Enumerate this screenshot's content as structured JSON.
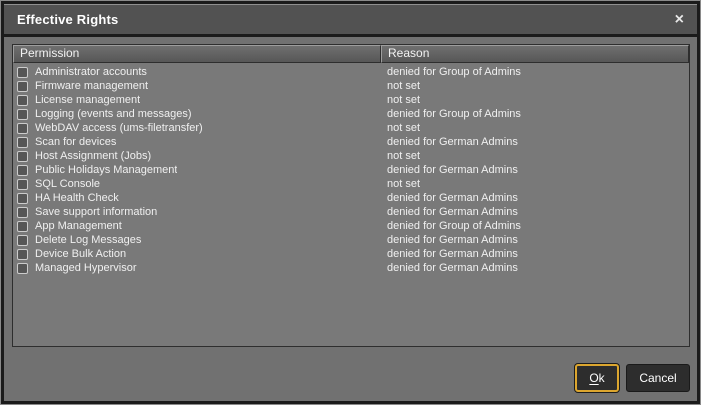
{
  "window": {
    "title": "Effective Rights",
    "close_icon": "×"
  },
  "table": {
    "columns": [
      "Permission",
      "Reason"
    ],
    "rows": [
      {
        "permission": "Administrator accounts",
        "reason": "denied for Group of Admins",
        "checked": false
      },
      {
        "permission": "Firmware management",
        "reason": "not set",
        "checked": false
      },
      {
        "permission": "License management",
        "reason": "not set",
        "checked": false
      },
      {
        "permission": "Logging (events and messages)",
        "reason": "denied for Group of Admins",
        "checked": false
      },
      {
        "permission": "WebDAV access (ums-filetransfer)",
        "reason": "not set",
        "checked": false
      },
      {
        "permission": "Scan for devices",
        "reason": "denied for German Admins",
        "checked": false
      },
      {
        "permission": "Host Assignment (Jobs)",
        "reason": "not set",
        "checked": false
      },
      {
        "permission": "Public Holidays Management",
        "reason": "denied for German Admins",
        "checked": false
      },
      {
        "permission": "SQL Console",
        "reason": "not set",
        "checked": false
      },
      {
        "permission": "HA Health Check",
        "reason": "denied for German Admins",
        "checked": false
      },
      {
        "permission": "Save support information",
        "reason": "denied for German Admins",
        "checked": false
      },
      {
        "permission": "App Management",
        "reason": "denied for Group of Admins",
        "checked": false
      },
      {
        "permission": "Delete Log Messages",
        "reason": "denied for German Admins",
        "checked": false
      },
      {
        "permission": "Device Bulk Action",
        "reason": "denied for German Admins",
        "checked": false
      },
      {
        "permission": "Managed Hypervisor",
        "reason": "denied for German Admins",
        "checked": false
      }
    ]
  },
  "buttons": {
    "ok": "Ok",
    "cancel": "Cancel"
  },
  "colors": {
    "accent": "#dca62f",
    "titlebar_bg": "#525252",
    "dialog_bg": "#717171",
    "table_bg": "#797979",
    "header_bg": "#5f5f5f",
    "button_bg": "#2d2d2d",
    "text": "#f0f0f0"
  }
}
